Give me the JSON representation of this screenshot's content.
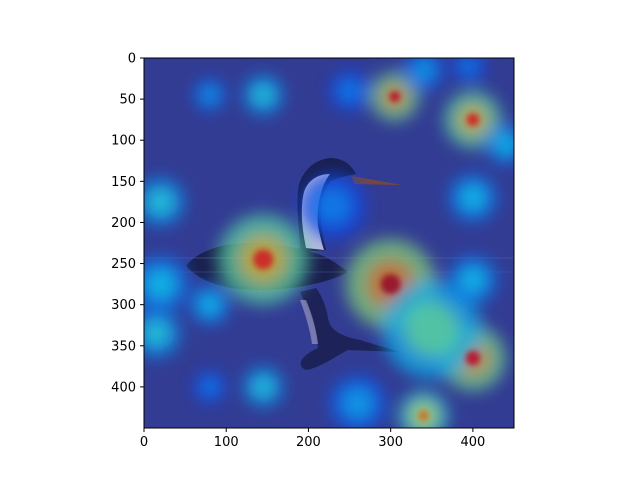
{
  "chart_data": {
    "type": "heatmap",
    "description": "",
    "xlim": [
      0,
      450
    ],
    "ylim": [
      450,
      0
    ],
    "x_ticks": [
      0,
      100,
      200,
      300,
      400
    ],
    "y_ticks": [
      0,
      50,
      100,
      150,
      200,
      250,
      300,
      350,
      400
    ],
    "x_tick_labels": [
      "0",
      "100",
      "200",
      "300",
      "400"
    ],
    "y_tick_labels": [
      "0",
      "50",
      "100",
      "150",
      "200",
      "250",
      "300",
      "350",
      "400"
    ],
    "grid": false,
    "colormap": "jet",
    "colors": {
      "background_tint": "#3a3fa8",
      "water": "#2b3a86",
      "bird_body": "#10142a",
      "bird_neck_white": "#e8e4ea",
      "beak": "#8a4a1c"
    },
    "hotspots": [
      {
        "x": 145,
        "y": 245,
        "intensity": 0.85,
        "spread": 55
      },
      {
        "x": 305,
        "y": 47,
        "intensity": 0.9,
        "spread": 30
      },
      {
        "x": 400,
        "y": 75,
        "intensity": 0.85,
        "spread": 35
      },
      {
        "x": 300,
        "y": 275,
        "intensity": 0.95,
        "spread": 55
      },
      {
        "x": 400,
        "y": 365,
        "intensity": 0.9,
        "spread": 40
      },
      {
        "x": 340,
        "y": 435,
        "intensity": 0.75,
        "spread": 30
      },
      {
        "x": 350,
        "y": 330,
        "intensity": 0.6,
        "spread": 60
      },
      {
        "x": 20,
        "y": 175,
        "intensity": 0.5,
        "spread": 30
      },
      {
        "x": 15,
        "y": 335,
        "intensity": 0.5,
        "spread": 30
      },
      {
        "x": 20,
        "y": 275,
        "intensity": 0.45,
        "spread": 35
      },
      {
        "x": 80,
        "y": 300,
        "intensity": 0.45,
        "spread": 25
      },
      {
        "x": 145,
        "y": 45,
        "intensity": 0.5,
        "spread": 25
      },
      {
        "x": 80,
        "y": 45,
        "intensity": 0.4,
        "spread": 20
      },
      {
        "x": 145,
        "y": 400,
        "intensity": 0.5,
        "spread": 25
      },
      {
        "x": 80,
        "y": 400,
        "intensity": 0.35,
        "spread": 20
      },
      {
        "x": 400,
        "y": 170,
        "intensity": 0.45,
        "spread": 30
      },
      {
        "x": 440,
        "y": 105,
        "intensity": 0.45,
        "spread": 25
      },
      {
        "x": 400,
        "y": 270,
        "intensity": 0.45,
        "spread": 30
      },
      {
        "x": 260,
        "y": 420,
        "intensity": 0.4,
        "spread": 35
      },
      {
        "x": 230,
        "y": 180,
        "intensity": 0.35,
        "spread": 40
      },
      {
        "x": 250,
        "y": 40,
        "intensity": 0.35,
        "spread": 25
      },
      {
        "x": 340,
        "y": 15,
        "intensity": 0.4,
        "spread": 25
      },
      {
        "x": 395,
        "y": 10,
        "intensity": 0.35,
        "spread": 20
      }
    ]
  }
}
